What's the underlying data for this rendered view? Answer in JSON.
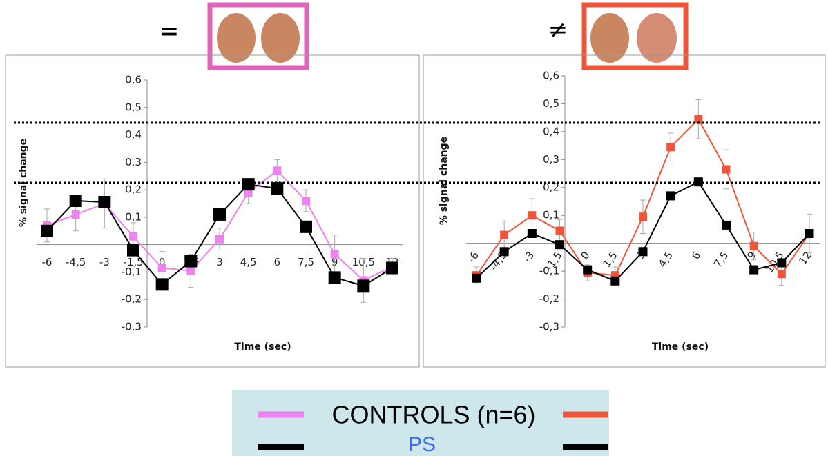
{
  "header": {
    "left_symbol": "=",
    "right_symbol": "≠"
  },
  "legend": {
    "controls": "CONTROLS (n=6)",
    "ps": "PS"
  },
  "chart_data": [
    {
      "type": "line",
      "y_label": "% signal change",
      "x_label": "Time (sec)",
      "categories": [
        "-6",
        "-4,5",
        "-3",
        "-1,5",
        "0",
        "1,5",
        "3",
        "4,5",
        "6",
        "7,5",
        "9",
        "10,5",
        "12"
      ],
      "ylim": [
        -0.3,
        0.6
      ],
      "yticks": [
        {
          "value": 0.6,
          "label": "0,6"
        },
        {
          "value": 0.5,
          "label": "0,5"
        },
        {
          "value": 0.4,
          "label": "0,4"
        },
        {
          "value": 0.3,
          "label": "0,3"
        },
        {
          "value": 0.2,
          "label": "0,2"
        },
        {
          "value": 0.1,
          "label": "0,1"
        },
        {
          "value": -0.1,
          "label": "-0,1"
        },
        {
          "value": -0.2,
          "label": "-0,2"
        },
        {
          "value": -0.3,
          "label": "-0,3"
        }
      ],
      "series": [
        {
          "color": "#ee82ee",
          "values": [
            0.07,
            0.11,
            0.15,
            0.03,
            -0.085,
            -0.095,
            0.02,
            0.19,
            0.27,
            0.16,
            -0.035,
            -0.13,
            -0.08
          ],
          "errors": [
            0.06,
            0.06,
            0.09,
            0.05,
            0.06,
            0.06,
            0.04,
            0.04,
            0.04,
            0.04,
            0.07,
            0.08,
            0.03
          ]
        },
        {
          "color": "#000000",
          "values": [
            0.05,
            0.16,
            0.155,
            -0.02,
            -0.145,
            -0.06,
            0.11,
            0.22,
            0.205,
            0.065,
            -0.12,
            -0.15,
            -0.085
          ]
        }
      ]
    },
    {
      "type": "line",
      "y_label": "% signal change",
      "x_label": "Time (sec)",
      "categories": [
        "-6",
        "-4,5",
        "-3",
        "-1,5",
        "0",
        "1,5",
        "3",
        "4,5",
        "6",
        "7,5",
        "9",
        "10,5",
        "12"
      ],
      "ylim": [
        -0.3,
        0.6
      ],
      "yticks": [
        {
          "value": 0.6,
          "label": "0,6"
        },
        {
          "value": 0.5,
          "label": "0,5"
        },
        {
          "value": 0.4,
          "label": "0,4"
        },
        {
          "value": 0.3,
          "label": "0,3"
        },
        {
          "value": 0.2,
          "label": "0,2"
        },
        {
          "value": 0.1,
          "label": "0,1"
        },
        {
          "value": -0.1,
          "label": "-0,1"
        },
        {
          "value": -0.2,
          "label": "-0,2"
        },
        {
          "value": -0.3,
          "label": "-0,3"
        }
      ],
      "series": [
        {
          "color": "#f0553a",
          "values": [
            -0.115,
            0.03,
            0.1,
            0.045,
            -0.105,
            -0.115,
            0.095,
            0.345,
            0.445,
            0.265,
            -0.01,
            -0.11,
            0.035
          ],
          "errors": [
            0.03,
            0.05,
            0.06,
            0.04,
            0.03,
            0.03,
            0.06,
            0.05,
            0.07,
            0.07,
            0.05,
            0.04,
            0.07
          ]
        },
        {
          "color": "#000000",
          "values": [
            -0.125,
            -0.03,
            0.035,
            -0.005,
            -0.095,
            -0.135,
            -0.03,
            0.17,
            0.22,
            0.065,
            -0.095,
            -0.07,
            0.035
          ]
        }
      ]
    }
  ]
}
